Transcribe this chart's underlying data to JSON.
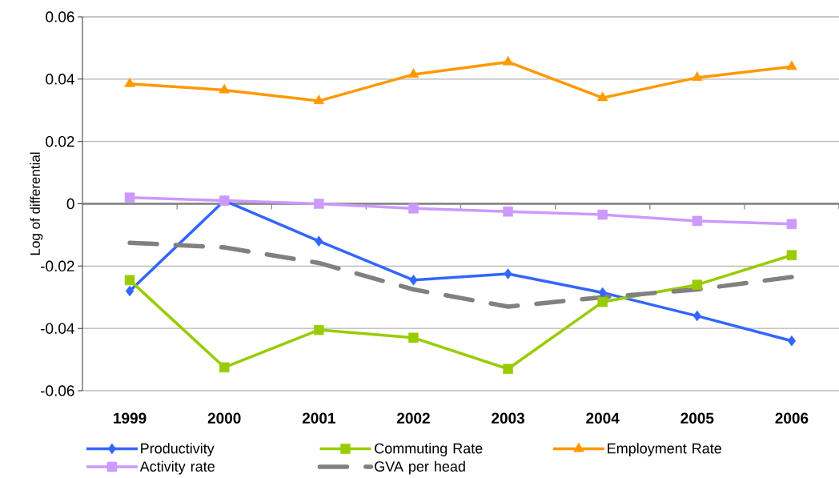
{
  "chart_data": {
    "type": "line",
    "ylabel": "Log of differential",
    "categories": [
      "1999",
      "2000",
      "2001",
      "2002",
      "2003",
      "2004",
      "2005",
      "2006"
    ],
    "series": [
      {
        "name": "Productivity",
        "color": "#3366ff",
        "marker": "diamond",
        "line_style": "solid",
        "values": [
          -0.028,
          0.001,
          -0.012,
          -0.0245,
          -0.0225,
          -0.0285,
          -0.036,
          -0.044
        ]
      },
      {
        "name": "Commuting Rate",
        "color": "#99cc00",
        "marker": "square",
        "line_style": "solid",
        "values": [
          -0.0245,
          -0.0525,
          -0.0405,
          -0.043,
          -0.053,
          -0.0315,
          -0.026,
          -0.0165
        ]
      },
      {
        "name": "Employment Rate",
        "color": "#ff9900",
        "marker": "triangle",
        "line_style": "solid",
        "values": [
          0.0385,
          0.0365,
          0.033,
          0.0415,
          0.0455,
          0.034,
          0.0405,
          0.044
        ]
      },
      {
        "name": "Activity rate",
        "color": "#cc99ff",
        "marker": "square",
        "line_style": "solid",
        "values": [
          0.002,
          0.001,
          0,
          -0.0015,
          -0.0025,
          -0.0035,
          -0.0055,
          -0.0065
        ]
      },
      {
        "name": "GVA per head",
        "color": "#808080",
        "marker": "none",
        "line_style": "dashed",
        "values": [
          -0.0125,
          -0.014,
          -0.019,
          -0.0275,
          -0.033,
          -0.03,
          -0.0275,
          -0.0235
        ]
      }
    ],
    "ylim": [
      -0.06,
      0.06
    ],
    "yticks": [
      -0.06,
      -0.04,
      -0.02,
      0,
      0.02,
      0.04,
      0.06
    ],
    "grid": "y",
    "legend": "bottom"
  }
}
